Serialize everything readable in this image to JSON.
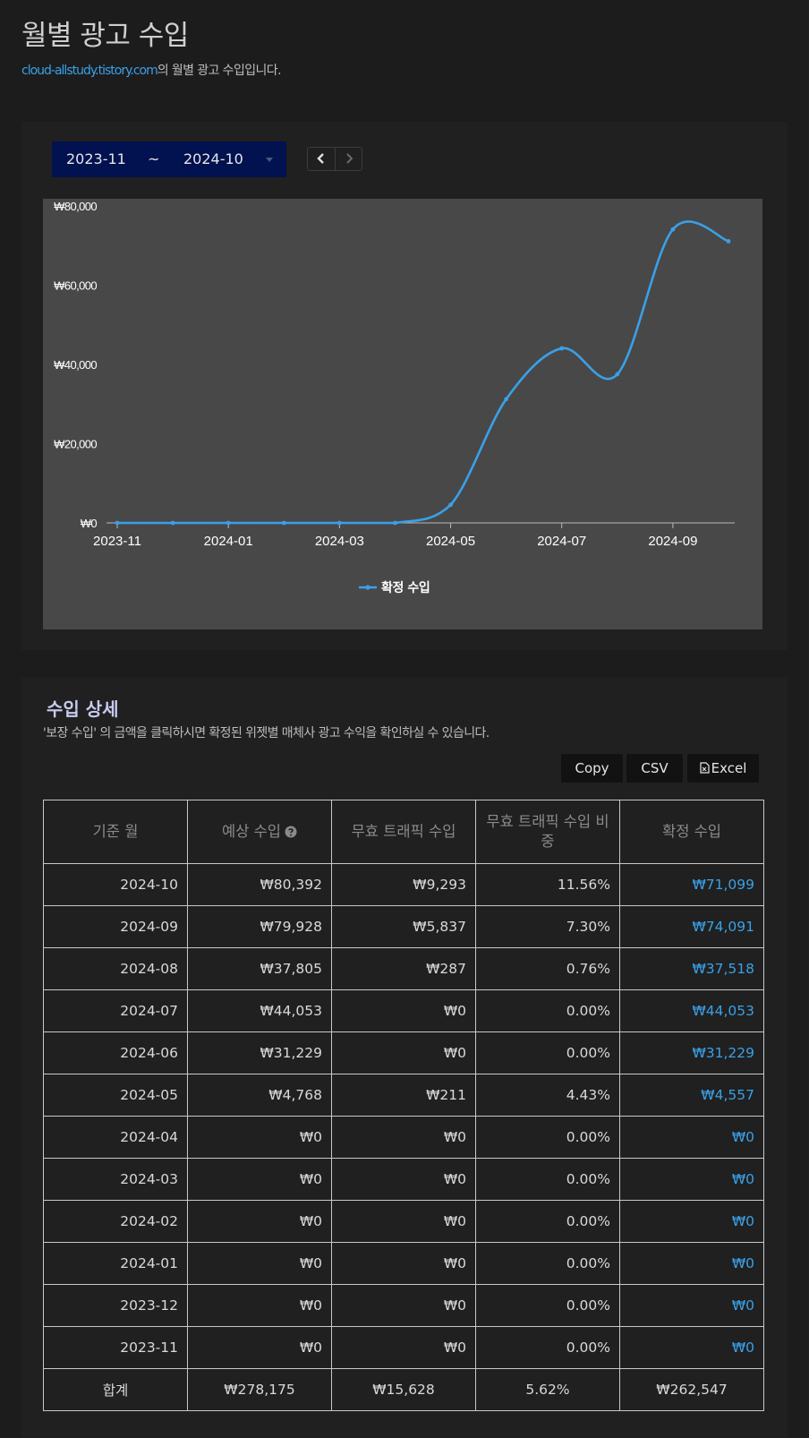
{
  "page": {
    "title": "월별 광고 수입",
    "site_link": "cloud-allstudy.tistory.com",
    "subtitle_suffix": "의 월별 광고 수입입니다."
  },
  "controls": {
    "range_from": "2023-11",
    "range_separator": "~",
    "range_to": "2024-10",
    "prev_icon": "chevron-left-icon",
    "next_icon": "chevron-right-icon"
  },
  "colors": {
    "accent": "#3aa0e8",
    "range_bg": "#021150",
    "chart_bg": "#484848",
    "section_title": "#c8cbf0"
  },
  "chart_data": {
    "type": "line",
    "x": [
      "2023-11",
      "2023-12",
      "2024-01",
      "2024-02",
      "2024-03",
      "2024-04",
      "2024-05",
      "2024-06",
      "2024-07",
      "2024-08",
      "2024-09",
      "2024-10"
    ],
    "x_tick_labels": [
      "2023-11",
      "2024-01",
      "2024-03",
      "2024-05",
      "2024-07",
      "2024-09"
    ],
    "series": [
      {
        "name": "확정 수입",
        "values": [
          0,
          0,
          0,
          0,
          0,
          0,
          4557,
          31229,
          44053,
          37518,
          74091,
          71099
        ],
        "color": "#3aa0e8"
      }
    ],
    "ylim": [
      0,
      80000
    ],
    "y_ticks": [
      0,
      20000,
      40000,
      60000,
      80000
    ],
    "y_tick_labels": [
      "₩0",
      "₩20,000",
      "₩40,000",
      "₩60,000",
      "₩80,000"
    ],
    "legend_position": "bottom",
    "grid": false,
    "smooth": true
  },
  "detail": {
    "title": "수입 상세",
    "description": "'보장 수입' 의 금액을 클릭하시면 확정된 위젯별 매체사 광고 수익을 확인하실 수 있습니다.",
    "buttons": {
      "copy": "Copy",
      "csv": "CSV",
      "excel": "Excel"
    },
    "columns": [
      "기준 월",
      "예상 수입",
      "무효 트래픽 수입",
      "무효 트래픽 수입 비중",
      "확정 수입"
    ],
    "rows": [
      {
        "month": "2024-10",
        "expected": "₩80,392",
        "invalid": "₩9,293",
        "ratio": "11.56%",
        "confirmed": "₩71,099"
      },
      {
        "month": "2024-09",
        "expected": "₩79,928",
        "invalid": "₩5,837",
        "ratio": "7.30%",
        "confirmed": "₩74,091"
      },
      {
        "month": "2024-08",
        "expected": "₩37,805",
        "invalid": "₩287",
        "ratio": "0.76%",
        "confirmed": "₩37,518"
      },
      {
        "month": "2024-07",
        "expected": "₩44,053",
        "invalid": "₩0",
        "ratio": "0.00%",
        "confirmed": "₩44,053"
      },
      {
        "month": "2024-06",
        "expected": "₩31,229",
        "invalid": "₩0",
        "ratio": "0.00%",
        "confirmed": "₩31,229"
      },
      {
        "month": "2024-05",
        "expected": "₩4,768",
        "invalid": "₩211",
        "ratio": "4.43%",
        "confirmed": "₩4,557"
      },
      {
        "month": "2024-04",
        "expected": "₩0",
        "invalid": "₩0",
        "ratio": "0.00%",
        "confirmed": "₩0"
      },
      {
        "month": "2024-03",
        "expected": "₩0",
        "invalid": "₩0",
        "ratio": "0.00%",
        "confirmed": "₩0"
      },
      {
        "month": "2024-02",
        "expected": "₩0",
        "invalid": "₩0",
        "ratio": "0.00%",
        "confirmed": "₩0"
      },
      {
        "month": "2024-01",
        "expected": "₩0",
        "invalid": "₩0",
        "ratio": "0.00%",
        "confirmed": "₩0"
      },
      {
        "month": "2023-12",
        "expected": "₩0",
        "invalid": "₩0",
        "ratio": "0.00%",
        "confirmed": "₩0"
      },
      {
        "month": "2023-11",
        "expected": "₩0",
        "invalid": "₩0",
        "ratio": "0.00%",
        "confirmed": "₩0"
      }
    ],
    "total": {
      "label": "합계",
      "expected": "₩278,175",
      "invalid": "₩15,628",
      "ratio": "5.62%",
      "confirmed": "₩262,547"
    }
  }
}
